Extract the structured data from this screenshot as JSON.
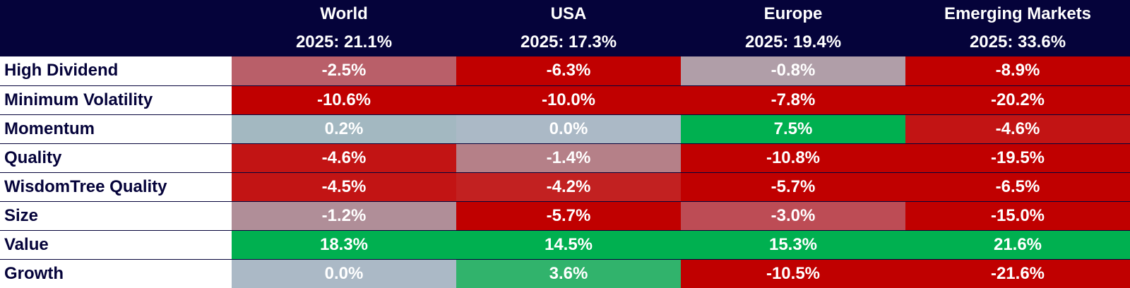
{
  "chart_data": {
    "type": "heatmap",
    "columns": [
      {
        "name": "World",
        "sub": "2025: 21.1%"
      },
      {
        "name": "USA",
        "sub": "2025: 17.3%"
      },
      {
        "name": "Europe",
        "sub": "2025: 19.4%"
      },
      {
        "name": "Emerging Markets",
        "sub": "2025: 33.6%"
      }
    ],
    "rows": [
      {
        "label": "High Dividend",
        "values": [
          "-2.5%",
          "-6.3%",
          "-0.8%",
          "-8.9%"
        ],
        "colors": [
          "#b95f69",
          "#c00000",
          "#b09ea8",
          "#c00000"
        ]
      },
      {
        "label": "Minimum Volatility",
        "values": [
          "-10.6%",
          "-10.0%",
          "-7.8%",
          "-20.2%"
        ],
        "colors": [
          "#c00000",
          "#c00000",
          "#c00000",
          "#c00000"
        ]
      },
      {
        "label": "Momentum",
        "values": [
          "0.2%",
          "0.0%",
          "7.5%",
          "-4.6%"
        ],
        "colors": [
          "#a3b8c1",
          "#abb9c6",
          "#00b050",
          "#c21414"
        ]
      },
      {
        "label": "Quality",
        "values": [
          "-4.6%",
          "-1.4%",
          "-10.8%",
          "-19.5%"
        ],
        "colors": [
          "#c21414",
          "#b58088",
          "#c00000",
          "#c00000"
        ]
      },
      {
        "label": "WisdomTree Quality",
        "values": [
          "-4.5%",
          "-4.2%",
          "-5.7%",
          "-6.5%"
        ],
        "colors": [
          "#c21414",
          "#c22121",
          "#c00000",
          "#c00000"
        ]
      },
      {
        "label": "Size",
        "values": [
          "-1.2%",
          "-5.7%",
          "-3.0%",
          "-15.0%"
        ],
        "colors": [
          "#b08e98",
          "#c00000",
          "#bd4c55",
          "#c00000"
        ]
      },
      {
        "label": "Value",
        "values": [
          "18.3%",
          "14.5%",
          "15.3%",
          "21.6%"
        ],
        "colors": [
          "#00b050",
          "#00b050",
          "#00b050",
          "#00b050"
        ]
      },
      {
        "label": "Growth",
        "values": [
          "0.0%",
          "3.6%",
          "-10.5%",
          "-21.6%"
        ],
        "colors": [
          "#abb9c6",
          "#31b36c",
          "#c00000",
          "#c00000"
        ]
      }
    ]
  }
}
